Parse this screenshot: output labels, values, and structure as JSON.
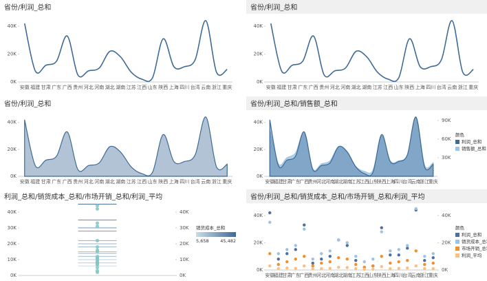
{
  "chart_data": [
    {
      "type": "line",
      "title": "省份/利润_总和",
      "categories": [
        "安徽",
        "福建",
        "甘肃",
        "广东",
        "广西",
        "贵州",
        "河北",
        "河南",
        "湖北",
        "湖南",
        "江苏",
        "江西",
        "山东",
        "陕西",
        "上海",
        "四川",
        "台湾",
        "云南",
        "浙江",
        "重庆"
      ],
      "series": [
        {
          "color": "#3e6a96",
          "values": [
            42000,
            8000,
            12000,
            15000,
            33000,
            5000,
            8000,
            10000,
            22000,
            18000,
            7000,
            2000,
            3000,
            31000,
            11000,
            11000,
            16000,
            44000,
            7000,
            9000
          ]
        }
      ],
      "ylim": [
        0,
        46000
      ],
      "yticks": [
        {
          "value": 0,
          "label": "0K"
        },
        {
          "value": 20000,
          "label": "20K"
        },
        {
          "value": 40000,
          "label": "40K"
        }
      ]
    },
    {
      "type": "line",
      "title": "省份/利润_总和",
      "categories": [
        "安徽",
        "福建",
        "甘肃",
        "广东",
        "广西",
        "贵州",
        "河北",
        "河南",
        "湖北",
        "湖南",
        "江苏",
        "江西",
        "山东",
        "陕西",
        "上海",
        "四川",
        "台湾",
        "云南",
        "浙江",
        "重庆"
      ],
      "series": [
        {
          "color": "#3e6a96",
          "values": [
            42000,
            8000,
            12000,
            15000,
            33000,
            5000,
            8000,
            10000,
            22000,
            18000,
            7000,
            2000,
            3000,
            31000,
            11000,
            11000,
            16000,
            44000,
            7000,
            9000
          ]
        }
      ],
      "ylim": [
        0,
        46000
      ],
      "yticks": [
        {
          "value": 0,
          "label": "0K"
        },
        {
          "value": 20000,
          "label": "20K"
        },
        {
          "value": 40000,
          "label": "40K"
        }
      ]
    },
    {
      "type": "area",
      "title": "省份/利润_总和",
      "categories": [
        "安徽",
        "福建",
        "甘肃",
        "广东",
        "广西",
        "贵州",
        "河北",
        "河南",
        "湖北",
        "湖南",
        "江苏",
        "江西",
        "山东",
        "陕西",
        "上海",
        "四川",
        "台湾",
        "云南",
        "浙江",
        "重庆"
      ],
      "series": [
        {
          "color": "#3e6a96",
          "values": [
            42000,
            8000,
            12000,
            15000,
            33000,
            5000,
            8000,
            10000,
            22000,
            18000,
            7000,
            2000,
            3000,
            31000,
            11000,
            11000,
            16000,
            44000,
            7000,
            9000
          ]
        }
      ],
      "ylim": [
        0,
        46000
      ],
      "yticks": [
        {
          "value": 0,
          "label": "0K"
        },
        {
          "value": 20000,
          "label": "20K"
        },
        {
          "value": 40000,
          "label": "40K"
        }
      ]
    },
    {
      "type": "area",
      "title": "省份/利润_总和/销售额_总和",
      "legend_title": "颜色",
      "categories": [
        "安徽",
        "福建",
        "甘肃",
        "广东",
        "广西",
        "贵州",
        "河北",
        "河南",
        "湖北",
        "湖南",
        "江苏",
        "江西",
        "山东",
        "陕西",
        "上海",
        "四川",
        "台湾",
        "云南",
        "浙江",
        "重庆"
      ],
      "series": [
        {
          "name": "利润_总和",
          "color": "#3e6a96",
          "values": [
            42000,
            8000,
            12000,
            15000,
            33000,
            5000,
            8000,
            10000,
            22000,
            18000,
            7000,
            2000,
            3000,
            31000,
            11000,
            11000,
            16000,
            44000,
            7000,
            9000
          ]
        },
        {
          "name": "销售额_总和",
          "color": "#9cc3e4",
          "axis": "y2",
          "values": [
            75000,
            20000,
            30000,
            38000,
            70000,
            12000,
            20000,
            25000,
            48000,
            40000,
            16000,
            8000,
            10000,
            65000,
            25000,
            25000,
            35000,
            95000,
            18000,
            22000
          ]
        }
      ],
      "ylim": [
        0,
        46000
      ],
      "yticks": [
        {
          "value": 0,
          "label": "0K"
        },
        {
          "value": 20000,
          "label": "20K"
        },
        {
          "value": 40000,
          "label": "40K"
        }
      ],
      "y2lim": [
        0,
        100000
      ],
      "y2ticks": [
        {
          "value": 30000,
          "label": "30K"
        },
        {
          "value": 60000,
          "label": "60K"
        },
        {
          "value": 90000,
          "label": "90K"
        }
      ]
    },
    {
      "type": "box",
      "title": "利润_总和/销货成本_总和/市场开销_总和/利润_平均",
      "series": [
        {
          "color": "#7fc8c3",
          "values": [
            42000,
            8000,
            12000,
            15000,
            33000,
            5000,
            8000,
            10000,
            22000,
            18000,
            7000,
            2000,
            3000,
            31000,
            11000,
            11000,
            16000,
            44000,
            7000,
            9000
          ]
        },
        {
          "axis": "y2",
          "values": [
            35000,
            12000,
            15000,
            18000,
            30000,
            8000,
            12000,
            14000,
            22000,
            20000,
            10000,
            6000,
            8000,
            28000,
            14000,
            15000,
            18000,
            45000,
            10000,
            12000
          ]
        }
      ],
      "color_legend": {
        "title": "销货成本_总和",
        "min": {
          "value": 5658,
          "label": "5,658"
        },
        "max": {
          "value": 45482,
          "label": "45,482"
        }
      },
      "ylim": [
        0,
        43000
      ],
      "yticks": [
        {
          "value": 0,
          "label": "0K"
        },
        {
          "value": 10000,
          "label": "10K"
        },
        {
          "value": 20000,
          "label": "20K"
        },
        {
          "value": 30000,
          "label": "30K"
        },
        {
          "value": 40000,
          "label": "40K"
        }
      ],
      "y2lim": [
        0,
        43000
      ],
      "y2ticks": [
        {
          "value": 0,
          "label": "0K"
        },
        {
          "value": 10000,
          "label": "10K"
        },
        {
          "value": 20000,
          "label": "20K"
        },
        {
          "value": 30000,
          "label": "30K"
        },
        {
          "value": 40000,
          "label": "40K"
        }
      ]
    },
    {
      "type": "scatter",
      "title": "省份/利润_总和/销货成本_总和/市场开销_总和/利润_平均",
      "legend_title": "颜色",
      "categories": [
        "安徽",
        "福建",
        "甘肃",
        "广东",
        "广西",
        "贵州",
        "河北",
        "河南",
        "湖北",
        "湖南",
        "江苏",
        "江西",
        "山东",
        "陕西",
        "上海",
        "四川",
        "台湾",
        "云南",
        "浙江",
        "重庆"
      ],
      "series": [
        {
          "name": "利润_总和",
          "color": "#4e6fa0",
          "values": [
            42000,
            8000,
            12000,
            15000,
            33000,
            5000,
            8000,
            10000,
            22000,
            18000,
            7000,
            2000,
            3000,
            31000,
            11000,
            11000,
            16000,
            44000,
            7000,
            9000
          ]
        },
        {
          "name": "销货成本_总和",
          "color": "#9cc3e4",
          "values": [
            35000,
            12000,
            15000,
            18000,
            30000,
            8000,
            12000,
            14000,
            22000,
            20000,
            10000,
            6000,
            8000,
            28000,
            14000,
            15000,
            18000,
            45000,
            10000,
            12000
          ]
        },
        {
          "name": "市场开销_总和",
          "color": "#f28e2b",
          "values": [
            12000,
            4000,
            6000,
            8000,
            10000,
            3000,
            5000,
            6000,
            9000,
            8000,
            4000,
            2000,
            3000,
            10000,
            5000,
            6000,
            7000,
            14000,
            4000,
            5000
          ]
        },
        {
          "name": "利润_平均",
          "color": "#ffbe7d",
          "values": [
            3000,
            1000,
            1500,
            1200,
            3000,
            800,
            1000,
            1200,
            2000,
            1800,
            1000,
            500,
            600,
            2500,
            1000,
            1200,
            1500,
            3000,
            1000,
            1000
          ]
        }
      ],
      "ylim": [
        0,
        46000
      ],
      "yticks": [
        {
          "value": 0,
          "label": "0K"
        },
        {
          "value": 20000,
          "label": "20K"
        },
        {
          "value": 40000,
          "label": "40K"
        }
      ],
      "y2lim": [
        0,
        46000
      ],
      "y2ticks": [
        {
          "value": 0,
          "label": "0K"
        },
        {
          "value": 20000,
          "label": "20K"
        },
        {
          "value": 40000,
          "label": "40K"
        }
      ]
    }
  ]
}
